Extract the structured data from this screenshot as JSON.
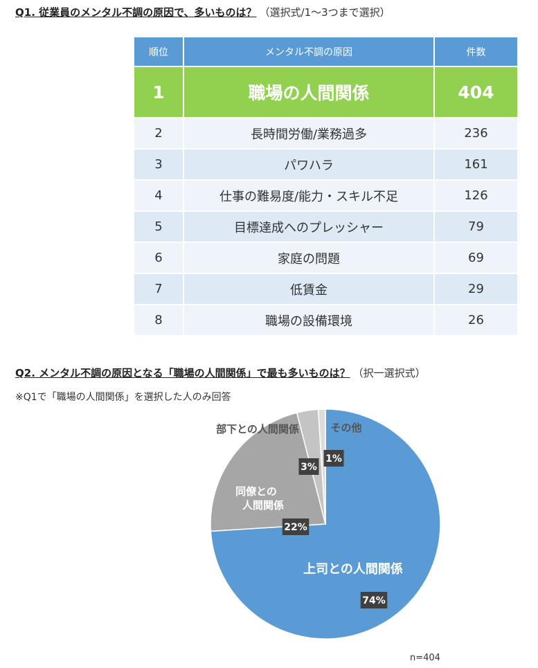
{
  "q1": {
    "heading": "Q1. 従業員のメンタル不調の原因で、多いものは？",
    "subheading": "（選択式/1～3つまで選択）"
  },
  "table": {
    "headers": [
      "順位",
      "メンタル不調の原因",
      "件数"
    ],
    "rows": [
      {
        "rank": "1",
        "reason": "職場の人間関係",
        "count": "404"
      },
      {
        "rank": "2",
        "reason": "長時間労働/業務過多",
        "count": "236"
      },
      {
        "rank": "3",
        "reason": "パワハラ",
        "count": "161"
      },
      {
        "rank": "4",
        "reason": "仕事の難易度/能力・スキル不足",
        "count": "126"
      },
      {
        "rank": "5",
        "reason": "目標達成へのプレッシャー",
        "count": "79"
      },
      {
        "rank": "6",
        "reason": "家庭の問題",
        "count": "69"
      },
      {
        "rank": "7",
        "reason": "低賃金",
        "count": "29"
      },
      {
        "rank": "8",
        "reason": "職場の設備環境",
        "count": "26"
      }
    ]
  },
  "q2": {
    "heading": "Q2. メンタル不調の原因となる「職場の人間関係」で最も多いものは？",
    "subheading": "（択一選択式）",
    "note": "※Q1で「職場の人間関係」を選択した人のみ回答",
    "n_label": "n=404"
  },
  "chart_data": [
    {
      "type": "table",
      "columns": [
        "順位",
        "メンタル不調の原因",
        "件数"
      ],
      "rows": [
        [
          "1",
          "職場の人間関係",
          404
        ],
        [
          "2",
          "長時間労働/業務過多",
          236
        ],
        [
          "3",
          "パワハラ",
          161
        ],
        [
          "4",
          "仕事の難易度/能力・スキル不足",
          126
        ],
        [
          "5",
          "目標達成へのプレッシャー",
          79
        ],
        [
          "6",
          "家庭の問題",
          69
        ],
        [
          "7",
          "低賃金",
          29
        ],
        [
          "8",
          "職場の設備環境",
          26
        ]
      ],
      "highlight_color": "#92d050",
      "header_color": "#5b9bd5"
    },
    {
      "type": "pie",
      "slices": [
        {
          "label": "上司との人間関係",
          "value": 74,
          "value_label": "74%",
          "color": "#5b9bd5"
        },
        {
          "label": "同僚との人間関係",
          "value": 22,
          "value_label": "22%",
          "color": "#a6a6a6"
        },
        {
          "label": "部下との人間関係",
          "value": 3,
          "value_label": "3%",
          "color": "#c4c4c4"
        },
        {
          "label": "その他",
          "value": 1,
          "value_label": "1%",
          "color": "#dcdcdc"
        }
      ],
      "n": "n=404"
    }
  ]
}
